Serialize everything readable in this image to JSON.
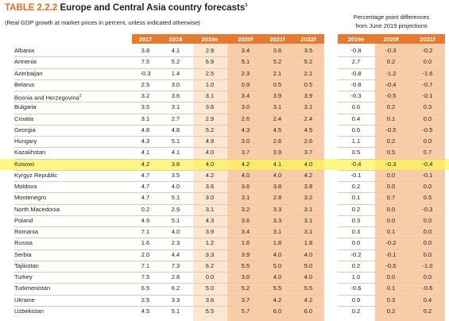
{
  "title_label": "TABLE 2.2.2",
  "title": "Europe and Central Asia country forecasts",
  "title_note": "1",
  "subtitle": "(Real GDP growth at market prices in percent, unless indicated otherwise)",
  "right_header": [
    "Percentage point differences",
    "from June 2019 projections"
  ],
  "columns_left": [
    "2017",
    "2018",
    "2019e",
    "2020f",
    "2021f",
    "2022f"
  ],
  "columns_right": [
    "2019e",
    "2020f",
    "2021f"
  ],
  "rows": [
    {
      "name": "Albania",
      "values": [
        "3.8",
        "4.1",
        "2.9",
        "3.4",
        "3.6",
        "3.5"
      ],
      "diffs": [
        "-0.8",
        "-0.3",
        "-0.2"
      ]
    },
    {
      "name": "Armenia",
      "values": [
        "7.5",
        "5.2",
        "6.9",
        "5.1",
        "5.2",
        "5.2"
      ],
      "diffs": [
        "2.7",
        "0.2",
        "0.0"
      ]
    },
    {
      "name": "Azerbaijan",
      "values": [
        "-0.3",
        "1.4",
        "2.5",
        "2.3",
        "2.1",
        "2.1"
      ],
      "diffs": [
        "-0.8",
        "-1.2",
        "-1.6"
      ]
    },
    {
      "name": "Belarus",
      "values": [
        "2.5",
        "3.0",
        "1.0",
        "0.9",
        "0.5",
        "0.5"
      ],
      "diffs": [
        "-0.8",
        "-0.4",
        "-0.7"
      ]
    },
    {
      "name": "Bosnia and Herzegovina",
      "note": "2",
      "values": [
        "3.2",
        "3.6",
        "3.1",
        "3.4",
        "3.9",
        "3.9"
      ],
      "diffs": [
        "-0.3",
        "-0.5",
        "-0.1"
      ]
    },
    {
      "name": "Bulgaria",
      "values": [
        "3.5",
        "3.1",
        "3.6",
        "3.0",
        "3.1",
        "3.1"
      ],
      "diffs": [
        "0.6",
        "0.2",
        "0.3"
      ]
    },
    {
      "name": "Croatia",
      "values": [
        "3.1",
        "2.7",
        "2.9",
        "2.6",
        "2.4",
        "2.4"
      ],
      "diffs": [
        "0.4",
        "0.1",
        "0.0"
      ]
    },
    {
      "name": "Georgia",
      "values": [
        "4.8",
        "4.8",
        "5.2",
        "4.3",
        "4.5",
        "4.5"
      ],
      "diffs": [
        "0.6",
        "-0.5",
        "-0.5"
      ]
    },
    {
      "name": "Hungary",
      "values": [
        "4.3",
        "5.1",
        "4.9",
        "3.0",
        "2.6",
        "2.6"
      ],
      "diffs": [
        "1.1",
        "0.2",
        "0.0"
      ]
    },
    {
      "name": "Kazakhstan",
      "values": [
        "4.1",
        "4.1",
        "4.0",
        "3.7",
        "3.9",
        "3.7"
      ],
      "diffs": [
        "0.5",
        "0.5",
        "0.7"
      ]
    },
    {
      "name": "Kosovo",
      "values": [
        "4.2",
        "3.8",
        "4.0",
        "4.2",
        "4.1",
        "4.0"
      ],
      "diffs": [
        "-0.4",
        "-0.3",
        "-0.4"
      ]
    },
    {
      "name": "Kyrgyz Republic",
      "values": [
        "4.7",
        "3.5",
        "4.2",
        "4.0",
        "4.0",
        "4.2"
      ],
      "diffs": [
        "-0.1",
        "0.0",
        "-0.1"
      ]
    },
    {
      "name": "Moldova",
      "values": [
        "4.7",
        "4.0",
        "3.6",
        "3.6",
        "3.8",
        "3.8"
      ],
      "diffs": [
        "0.2",
        "0.0",
        "0.0"
      ]
    },
    {
      "name": "Montenegro",
      "values": [
        "4.7",
        "5.1",
        "3.0",
        "3.1",
        "2.8",
        "3.2"
      ],
      "diffs": [
        "0.1",
        "0.7",
        "0.5"
      ]
    },
    {
      "name": "North Macedonia",
      "values": [
        "0.2",
        "2.9",
        "3.1",
        "3.2",
        "3.3",
        "3.1"
      ],
      "diffs": [
        "0.2",
        "0.0",
        "-0.3"
      ]
    },
    {
      "name": "Poland",
      "values": [
        "4.9",
        "5.1",
        "4.3",
        "3.6",
        "3.3",
        "3.1"
      ],
      "diffs": [
        "0.3",
        "0.0",
        "0.0"
      ]
    },
    {
      "name": "Romania",
      "values": [
        "7.1",
        "4.0",
        "3.9",
        "3.4",
        "3.1",
        "3.1"
      ],
      "diffs": [
        "0.3",
        "0.1",
        "0.0"
      ]
    },
    {
      "name": "Russia",
      "values": [
        "1.6",
        "2.3",
        "1.2",
        "1.6",
        "1.8",
        "1.8"
      ],
      "diffs": [
        "0.0",
        "-0.2",
        "0.0"
      ]
    },
    {
      "name": "Serbia",
      "values": [
        "2.0",
        "4.4",
        "3.3",
        "3.9",
        "4.0",
        "4.0"
      ],
      "diffs": [
        "-0.2",
        "-0.1",
        "0.0"
      ]
    },
    {
      "name": "Tajikistan",
      "values": [
        "7.1",
        "7.3",
        "6.2",
        "5.5",
        "5.0",
        "5.0"
      ],
      "diffs": [
        "0.2",
        "-0.5",
        "-1.0"
      ]
    },
    {
      "name": "Turkey",
      "values": [
        "7.5",
        "2.8",
        "0.0",
        "3.0",
        "4.0",
        "4.0"
      ],
      "diffs": [
        "1.0",
        "0.0",
        "0.0"
      ]
    },
    {
      "name": "Turkmenistan",
      "values": [
        "6.5",
        "6.2",
        "5.0",
        "5.2",
        "5.5",
        "5.5"
      ],
      "diffs": [
        "-0.6",
        "0.1",
        "-0.6"
      ]
    },
    {
      "name": "Ukraine",
      "values": [
        "2.5",
        "3.3",
        "3.6",
        "3.7",
        "4.2",
        "4.2"
      ],
      "diffs": [
        "0.9",
        "0.3",
        "0.4"
      ]
    },
    {
      "name": "Uzbekistan",
      "values": [
        "4.5",
        "5.1",
        "5.5",
        "5.7",
        "6.0",
        "6.0"
      ],
      "diffs": [
        "0.2",
        "0.2",
        "0.2"
      ]
    }
  ],
  "highlight_row": "Kosovo"
}
